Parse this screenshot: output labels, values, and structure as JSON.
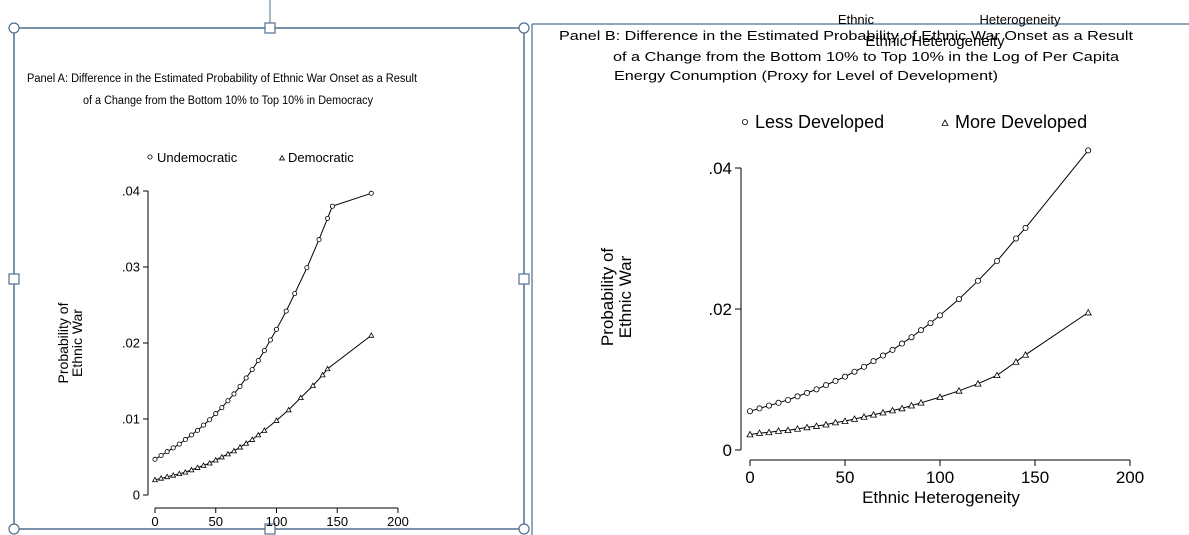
{
  "chart_data": [
    {
      "type": "scatter",
      "title": "Panel A: Difference in the Estimated Probability of Ethnic War Onset as a Result of a Change from the Bottom 10% to Top 10% in Democracy",
      "title_lines": [
        "Panel A: Difference in the Estimated Probability of Ethnic War Onset as a Result",
        "of a Change from the Bottom 10% to Top 10% in Democracy"
      ],
      "xlabel": "",
      "ylabel": "Probability of Ethnic War",
      "ylabel_lines": [
        "Probability of",
        "Ethnic War"
      ],
      "xlim": [
        0,
        200
      ],
      "ylim": [
        0,
        0.04
      ],
      "xticks": [
        "0",
        "50",
        "100",
        "150",
        "200"
      ],
      "yticks": [
        "0",
        ".01",
        ".02",
        ".03",
        ".04"
      ],
      "legend_position": "top",
      "grid": false,
      "series": [
        {
          "name": "Undemocratic",
          "marker": "circle",
          "x": [
            0,
            5,
            10,
            15,
            20,
            25,
            30,
            35,
            40,
            45,
            50,
            55,
            60,
            65,
            70,
            75,
            80,
            85,
            90,
            95,
            100,
            108,
            115,
            125,
            135,
            142,
            146,
            178
          ],
          "y": [
            0.0047,
            0.0052,
            0.0057,
            0.0062,
            0.0067,
            0.0073,
            0.0079,
            0.0085,
            0.0092,
            0.0099,
            0.0107,
            0.0115,
            0.0124,
            0.0133,
            0.0143,
            0.0154,
            0.0165,
            0.0177,
            0.019,
            0.0204,
            0.0218,
            0.0242,
            0.0265,
            0.0299,
            0.0336,
            0.0364,
            0.038,
            0.0397
          ]
        },
        {
          "name": "Democratic",
          "marker": "triangle",
          "x": [
            0,
            5,
            10,
            15,
            20,
            25,
            30,
            35,
            40,
            45,
            50,
            55,
            60,
            65,
            70,
            75,
            80,
            85,
            90,
            100,
            110,
            120,
            130,
            138,
            142,
            178
          ],
          "y": [
            0.002,
            0.0022,
            0.0024,
            0.0026,
            0.0028,
            0.003,
            0.0033,
            0.0036,
            0.0039,
            0.0042,
            0.0046,
            0.005,
            0.0054,
            0.0058,
            0.0063,
            0.0068,
            0.0073,
            0.0079,
            0.0085,
            0.0098,
            0.0112,
            0.0128,
            0.0144,
            0.0158,
            0.0166,
            0.021
          ]
        }
      ]
    },
    {
      "type": "scatter",
      "title": "Panel B: Difference in the Estimated Probability of Ethnic War Onset as a Result of a Change from the Bottom 10% to Top 10% in the Log of Per Capita Energy Conumption (Proxy for Level of Development)",
      "title_lines": [
        "Panel B: Difference in the Estimated Probability of Ethnic War Onset as a Result",
        "of a Change from the Bottom 10% to Top 10% in the Log of Per Capita",
        "Energy Conumption (Proxy for Level of Development)"
      ],
      "xlabel": "Ethnic Heterogeneity",
      "ylabel": "Probability of Ethnic War",
      "ylabel_lines": [
        "Probability of",
        "Ethnic War"
      ],
      "xlim": [
        0,
        200
      ],
      "ylim": [
        0,
        0.04
      ],
      "xticks": [
        "0",
        "50",
        "100",
        "150",
        "200"
      ],
      "yticks": [
        "0",
        ".02",
        ".04"
      ],
      "legend_position": "top",
      "grid": false,
      "series": [
        {
          "name": "Less Developed",
          "marker": "circle",
          "x": [
            0,
            5,
            10,
            15,
            20,
            25,
            30,
            35,
            40,
            45,
            50,
            55,
            60,
            65,
            70,
            75,
            80,
            85,
            90,
            95,
            100,
            110,
            120,
            130,
            140,
            145,
            178
          ],
          "y": [
            0.0055,
            0.0059,
            0.0063,
            0.0067,
            0.0071,
            0.0076,
            0.0081,
            0.0086,
            0.0092,
            0.0098,
            0.0104,
            0.0111,
            0.0118,
            0.0126,
            0.0134,
            0.0142,
            0.0151,
            0.016,
            0.017,
            0.018,
            0.0191,
            0.0214,
            0.024,
            0.0268,
            0.03,
            0.0315,
            0.0425
          ]
        },
        {
          "name": "More Developed",
          "marker": "triangle",
          "x": [
            0,
            5,
            10,
            15,
            20,
            25,
            30,
            35,
            40,
            45,
            50,
            55,
            60,
            65,
            70,
            75,
            80,
            85,
            90,
            100,
            110,
            120,
            130,
            140,
            145,
            178
          ],
          "y": [
            0.0022,
            0.0024,
            0.0025,
            0.0027,
            0.0028,
            0.003,
            0.0032,
            0.0034,
            0.0036,
            0.0039,
            0.0041,
            0.0044,
            0.0047,
            0.005,
            0.0053,
            0.0056,
            0.0059,
            0.0063,
            0.0067,
            0.0075,
            0.0084,
            0.0094,
            0.0106,
            0.0125,
            0.0135,
            0.0195
          ]
        }
      ]
    }
  ],
  "overlap": {
    "title_fragment": "Ethnic Heterogeneity",
    "tick_fragments": [
      "Ethnic",
      "Heterogeneity"
    ]
  }
}
